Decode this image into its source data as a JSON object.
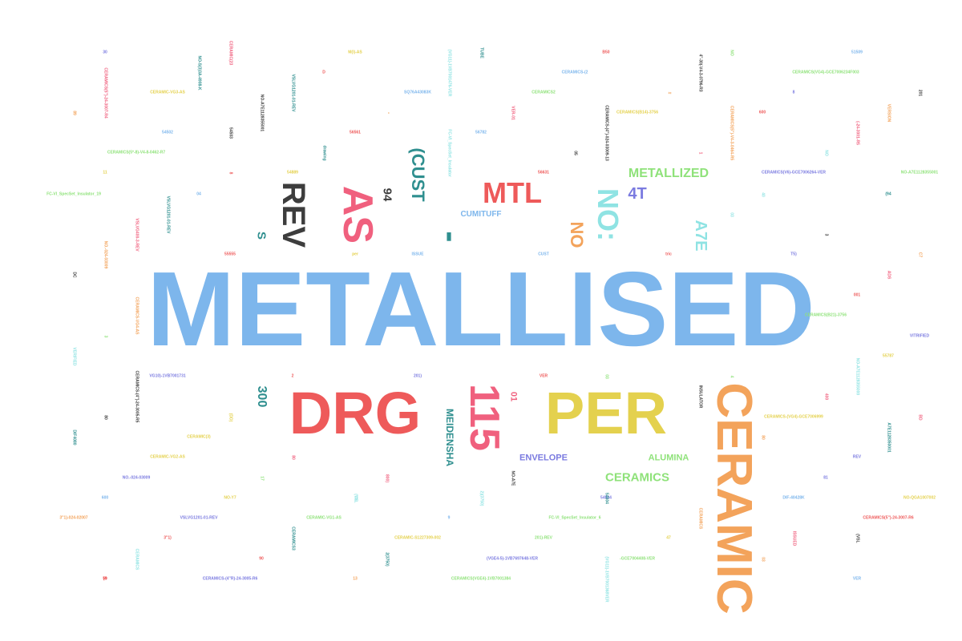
{
  "words": [
    {
      "text": "METALLISED",
      "color": "#7db6ec"
    },
    {
      "text": "CERAMIC",
      "color": "#f3a35b"
    },
    {
      "text": "DRG",
      "color": "#ee5a5a"
    },
    {
      "text": "PER",
      "color": "#e4d14e"
    },
    {
      "text": "115",
      "color": "#f0607e"
    },
    {
      "text": "AS",
      "color": "#f0607e"
    },
    {
      "text": "REV",
      "color": "#3d3d3d"
    },
    {
      "text": "MTL",
      "color": "#ee5a5a"
    },
    {
      "text": "NO:",
      "color": "#8fe3e3"
    },
    {
      "text": "(CUST",
      "color": "#2f8f8f"
    },
    {
      "text": "METALLIZED",
      "color": "#8fe27a"
    },
    {
      "text": "A7E",
      "color": "#8fe3e3"
    },
    {
      "text": "NO",
      "color": "#f3a35b"
    },
    {
      "text": "4T",
      "color": "#7b7be0"
    },
    {
      "text": "300",
      "color": "#2f8f8f"
    },
    {
      "text": "94",
      "color": "#3d3d3d"
    },
    {
      "text": "S",
      "color": "#2f8f8f"
    },
    {
      "text": "MEIDENSHA",
      "color": "#2f8f8f"
    },
    {
      "text": "CERAMICS",
      "color": "#8fe27a"
    },
    {
      "text": "ENVELOPE",
      "color": "#7b7be0"
    },
    {
      "text": "ALUMINA",
      "color": "#8fe27a"
    },
    {
      "text": "CUMITUFF",
      "color": "#7db6ec"
    },
    {
      "text": "01",
      "color": "#f0607e"
    },
    {
      "text": "▮",
      "color": "#2f8f8f"
    },
    {
      "text": "CERAMIC-VG3-AS",
      "color": "#e4d14e"
    },
    {
      "text": "CERAMICS(5*-8)-V4-8-0462-R7",
      "color": "#8fe27a"
    },
    {
      "text": "FC-VI_SpecSet_Insulator_19",
      "color": "#8fe27a"
    },
    {
      "text": "54502",
      "color": "#7db6ec"
    },
    {
      "text": "CERAMICS(V6)-GCE7006264-VER",
      "color": "#7b7be0"
    },
    {
      "text": "CERAMICS(VG4)-GCE7006234F003",
      "color": "#8fe27a"
    },
    {
      "text": "SQ76A43083K",
      "color": "#7db6ec"
    },
    {
      "text": "CERAMICS-(2",
      "color": "#7db6ec"
    },
    {
      "text": "CERAMICS(B14)-3756",
      "color": "#e4d14e"
    },
    {
      "text": "CERAMICS2",
      "color": "#8fe27a"
    },
    {
      "text": "NO-A7E1128355001",
      "color": "#8fe27a"
    },
    {
      "text": "M(I)-AS",
      "color": "#e4d14e"
    },
    {
      "text": "B50",
      "color": "#ee5a5a"
    },
    {
      "text": "51509",
      "color": "#7db6ec"
    },
    {
      "text": "56782",
      "color": "#7db6ec"
    },
    {
      "text": "56561",
      "color": "#ee5a5a"
    },
    {
      "text": "56631",
      "color": "#ee5a5a"
    },
    {
      "text": "55555",
      "color": "#ee5a5a"
    },
    {
      "text": "54889",
      "color": "#e4d14e"
    },
    {
      "text": "ISSUE",
      "color": "#7db6ec"
    },
    {
      "text": "CUST",
      "color": "#7db6ec"
    },
    {
      "text": "per",
      "color": "#e4d14e"
    },
    {
      "text": "CERAMICS(B21)-3756",
      "color": "#8fe27a"
    },
    {
      "text": "VITRIFIED",
      "color": "#7b7be0"
    },
    {
      "text": "VG10)-1VB7001731",
      "color": "#7b7be0"
    },
    {
      "text": "CERAMICS-(VG4)-GCE7006999",
      "color": "#e4d14e"
    },
    {
      "text": "CERAMIC-VG2-AS",
      "color": "#e4d14e"
    },
    {
      "text": "NO.-024-03009",
      "color": "#7b7be0"
    },
    {
      "text": "NO-Y7",
      "color": "#e4d14e"
    },
    {
      "text": "54504",
      "color": "#7b7be0"
    },
    {
      "text": "DIF-40428K",
      "color": "#7db6ec"
    },
    {
      "text": "NO-QGA1007002",
      "color": "#e4d14e"
    },
    {
      "text": "3\"1)-024-02007",
      "color": "#f3a35b"
    },
    {
      "text": "VSLVG1201-01-REV",
      "color": "#7b7be0"
    },
    {
      "text": "CERAMIC-VG1-AS",
      "color": "#8fe27a"
    },
    {
      "text": "FC-VI_SpecSet_Insulator_6",
      "color": "#8fe27a"
    },
    {
      "text": "CERAMICS(5\")-24-3007-R6",
      "color": "#ee5a5a"
    },
    {
      "text": "CERAMIC-S1227309-002",
      "color": "#e4d14e"
    },
    {
      "text": "201)-REV",
      "color": "#8fe27a"
    },
    {
      "text": "(VGE4-5)-1VB7697648-VER",
      "color": "#7b7be0"
    },
    {
      "text": "-GCE7004408-VER",
      "color": "#8fe27a"
    },
    {
      "text": "CERAMICS-(4\"R)-24-3005-R6",
      "color": "#7b7be0"
    },
    {
      "text": "CERAMICS(VGE4)-1VB7001384",
      "color": "#8fe27a"
    },
    {
      "text": "REV",
      "color": "#7b7be0"
    },
    {
      "text": "VER",
      "color": "#7db6ec"
    },
    {
      "text": "VER",
      "color": "#ee5a5a"
    },
    {
      "text": "CERAMIC(3)",
      "color": "#e4d14e"
    },
    {
      "text": "201)",
      "color": "#7b7be0"
    },
    {
      "text": "55787",
      "color": "#e4d14e"
    },
    {
      "text": "001",
      "color": "#ee5a5a"
    },
    {
      "text": "600",
      "color": "#7db6ec"
    },
    {
      "text": "90",
      "color": "#ee5a5a"
    },
    {
      "text": "3\"1)",
      "color": "#ee5a5a"
    },
    {
      "text": "2",
      "color": "#ee5a5a"
    },
    {
      "text": "59",
      "color": "#ee5a5a"
    },
    {
      "text": "04",
      "color": "#7db6ec"
    },
    {
      "text": "81",
      "color": "#7b7be0"
    },
    {
      "text": "(94",
      "color": "#2f8f8f"
    },
    {
      "text": "9",
      "color": "#7db6ec"
    },
    {
      "text": "8",
      "color": "#7b7be0"
    },
    {
      "text": "D",
      "color": "#ee5a5a"
    },
    {
      "text": "11",
      "color": "#e4d14e"
    },
    {
      "text": "30",
      "color": "#7b7be0"
    },
    {
      "text": "T5)",
      "color": "#7b7be0"
    },
    {
      "text": "tric",
      "color": "#ee5a5a"
    },
    {
      "text": "(9",
      "color": "#ee5a5a"
    },
    {
      "text": "13",
      "color": "#f3a35b"
    },
    {
      "text": "47",
      "color": "#e4d14e"
    },
    {
      "text": "600",
      "color": "#ee5a5a"
    },
    {
      "text": "CERAMICS(5\")-24-3007-R4",
      "color": "#f0607e"
    },
    {
      "text": "NO-S(3)3A-4908-K",
      "color": "#2f8f8f"
    },
    {
      "text": "CERAMIC(23",
      "color": "#f0607e"
    },
    {
      "text": "VSLVG1201-01-REV",
      "color": "#2f8f8f"
    },
    {
      "text": "NO-A7E1128355001",
      "color": "#3d3d3d"
    },
    {
      "text": "54503",
      "color": "#3d3d3d"
    },
    {
      "text": "drawing",
      "color": "#2f8f8f"
    },
    {
      "text": "(VG11)-1VB7001476-VER",
      "color": "#8fe3e3"
    },
    {
      "text": "FC-VI_SpecSet_Insulator",
      "color": "#8fe3e3"
    },
    {
      "text": "TUBE",
      "color": "#2f8f8f"
    },
    {
      "text": "VER-01",
      "color": "#f0607e"
    },
    {
      "text": "CERAMICS-(4\")-024-03009-13",
      "color": "#3d3d3d"
    },
    {
      "text": "4\"-30(-V4-3-0796-R3",
      "color": "#3d3d3d"
    },
    {
      "text": "CERAMICS(5\")-V4-3-0464-R5",
      "color": "#f3a35b"
    },
    {
      "text": "(-24-3001-R5",
      "color": "#f0607e"
    },
    {
      "text": "VERSION",
      "color": "#f3a35b"
    },
    {
      "text": "201",
      "color": "#3d3d3d"
    },
    {
      "text": "NO.-024-03009",
      "color": "#f3a35b"
    },
    {
      "text": "VSLVG400-3-REV",
      "color": "#f0607e"
    },
    {
      "text": "VSLVG1201-01-REV",
      "color": "#2f8f8f"
    },
    {
      "text": "CERAMICS-VG4-AS",
      "color": "#f3a35b"
    },
    {
      "text": "CERAMICS-(4\")-24-3005-R5",
      "color": "#3d3d3d"
    },
    {
      "text": "INSULATOR",
      "color": "#3d3d3d"
    },
    {
      "text": "NO-A7E1128355000",
      "color": "#8fe3e3"
    },
    {
      "text": "A7E1128350001",
      "color": "#2f8f8f"
    },
    {
      "text": "ADS",
      "color": "#f0607e"
    },
    {
      "text": "CERAMICS",
      "color": "#f3a35b"
    },
    {
      "text": "ISSUED",
      "color": "#f0607e"
    },
    {
      "text": "(VG11)-1VB7001368VER",
      "color": "#8fe3e3"
    },
    {
      "text": "CERAMICS3",
      "color": "#2f8f8f"
    },
    {
      "text": "2(3750)",
      "color": "#2f8f8f"
    },
    {
      "text": "CERAMICS",
      "color": "#8fe3e3"
    },
    {
      "text": "NO-A7E",
      "color": "#3d3d3d"
    },
    {
      "text": "DIF4080",
      "color": "#2f8f8f"
    },
    {
      "text": "VERIFIED",
      "color": "#8fe3e3"
    },
    {
      "text": "(VSL",
      "color": "#8fe3e3"
    },
    {
      "text": "2)(3750)",
      "color": "#8fe3e3"
    },
    {
      "text": "54504",
      "color": "#2f8f8f"
    },
    {
      "text": "(DD)",
      "color": "#e4d14e"
    },
    {
      "text": "(VSL",
      "color": "#3d3d3d"
    },
    {
      "text": "DC",
      "color": "#3d3d3d"
    },
    {
      "text": "05",
      "color": "#3d3d3d"
    },
    {
      "text": "80",
      "color": "#3d3d3d"
    },
    {
      "text": "3",
      "color": "#3d3d3d"
    },
    {
      "text": "BD",
      "color": "#f0607e"
    },
    {
      "text": "400",
      "color": "#f0607e"
    },
    {
      "text": "800)",
      "color": "#f0607e"
    },
    {
      "text": "89",
      "color": "#f3a35b"
    },
    {
      "text": "80",
      "color": "#f0607e"
    },
    {
      "text": "80",
      "color": "#f3a35b"
    },
    {
      "text": "1",
      "color": "#f0607e"
    },
    {
      "text": "\"",
      "color": "#f3a35b"
    },
    {
      "text": "3",
      "color": "#8fe27a"
    },
    {
      "text": "8",
      "color": "#ee5a5a"
    },
    {
      "text": "C7",
      "color": "#f3a35b"
    },
    {
      "text": "NO",
      "color": "#8fe27a"
    },
    {
      "text": "NO",
      "color": "#8fe3e3"
    },
    {
      "text": "03",
      "color": "#8fe3e3"
    },
    {
      "text": "40",
      "color": "#8fe3e3"
    },
    {
      "text": "17",
      "color": "#8fe27a"
    },
    {
      "text": "03",
      "color": "#8fe27a"
    },
    {
      "text": "CE",
      "color": "#8fe3e3"
    },
    {
      "text": "4",
      "color": "#8fe27a"
    },
    {
      "text": "03",
      "color": "#f3a35b"
    },
    {
      "text": "#",
      "color": "#f3a35b"
    }
  ]
}
